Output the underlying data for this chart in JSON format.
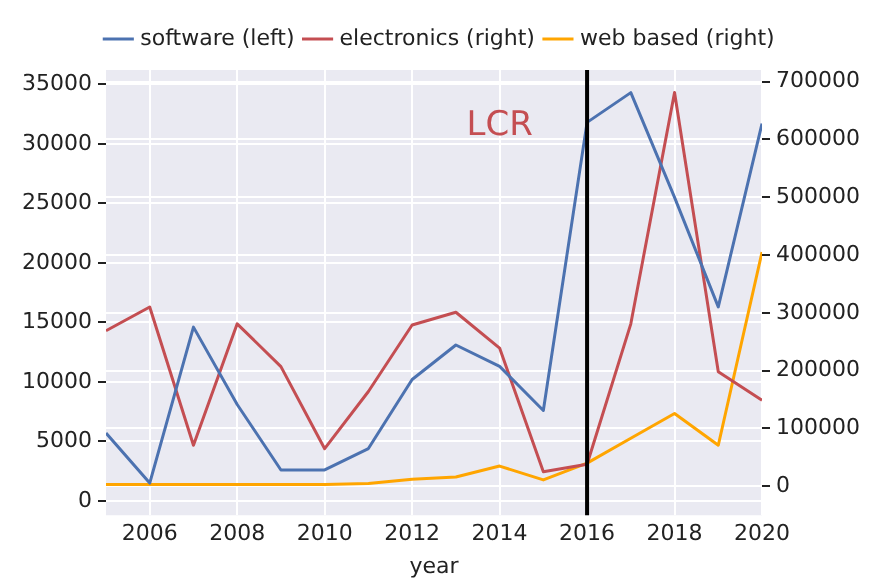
{
  "chart_data": {
    "type": "line",
    "xlabel": "year",
    "x": [
      2005,
      2006,
      2007,
      2008,
      2009,
      2010,
      2011,
      2012,
      2013,
      2014,
      2015,
      2016,
      2017,
      2018,
      2019,
      2020
    ],
    "series": [
      {
        "name": "software (left)",
        "color": "#4c72b0",
        "values": [
          5700,
          1500,
          14600,
          8100,
          2600,
          2600,
          4400,
          10200,
          13100,
          11300,
          7600,
          31800,
          34300,
          25500,
          16300,
          31700
        ]
      },
      {
        "name": "electronics (right)",
        "color": "#c44e52",
        "axis": "y2",
        "values": [
          269000,
          310000,
          71000,
          281000,
          207000,
          65000,
          164000,
          279000,
          301000,
          239000,
          25000,
          38000,
          281000,
          681000,
          198000,
          149000
        ]
      },
      {
        "name": "web based (right)",
        "color": "#ffa500",
        "axis": "y2",
        "values": [
          3000,
          3000,
          3000,
          3000,
          3000,
          3000,
          5000,
          12000,
          16000,
          35000,
          11000,
          40000,
          83000,
          126000,
          71000,
          405000
        ]
      }
    ],
    "xlim": [
      2005,
      2020
    ],
    "xticks": [
      2006,
      2008,
      2010,
      2012,
      2014,
      2016,
      2018,
      2020
    ],
    "ylim": [
      -1200,
      36200
    ],
    "yticks": [
      0,
      5000,
      10000,
      15000,
      20000,
      25000,
      30000,
      35000
    ],
    "y2lim": [
      -50000,
      720000
    ],
    "y2ticks": [
      0,
      100000,
      200000,
      300000,
      400000,
      500000,
      600000,
      700000
    ],
    "ref_lines": [
      {
        "axis": "x",
        "value": 2016,
        "color": "#000000"
      }
    ],
    "annotations": [
      "LCR"
    ],
    "grid": true,
    "legend": "top",
    "marker": "none",
    "line_style": "solid"
  }
}
